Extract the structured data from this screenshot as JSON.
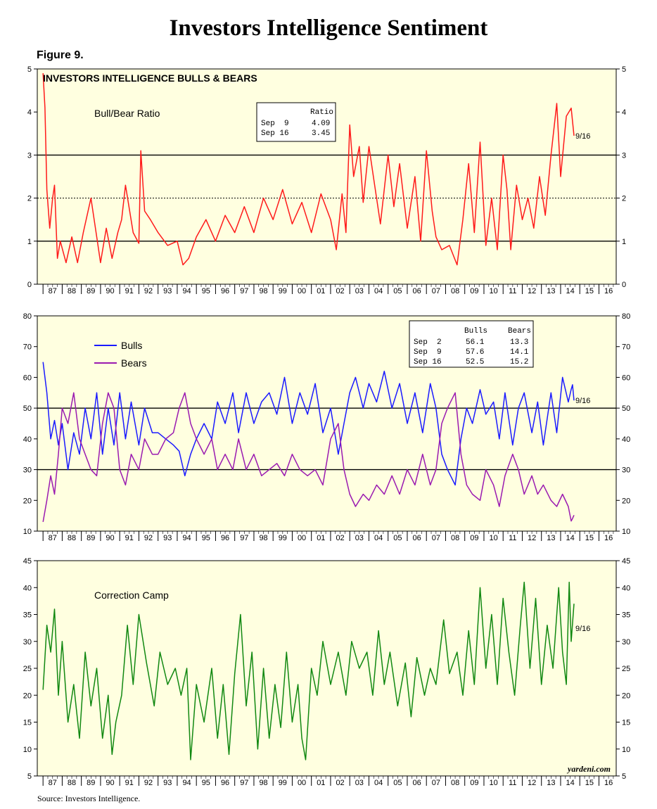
{
  "title": "Investors Intelligence Sentiment",
  "figure_label": "Figure 9.",
  "source": "Source: Investors Intelligence.",
  "watermark": "yardeni.com",
  "colors": {
    "ratio": "#ff1a1a",
    "bulls": "#1a1aff",
    "bears": "#9a1ab0",
    "correction": "#118811",
    "panel_bg": "#ffffe0"
  },
  "chart_data": [
    {
      "type": "line",
      "title": "INVESTORS INTELLIGENCE BULLS & BEARS",
      "label": "Bull/Bear Ratio",
      "ylim": [
        0,
        5
      ],
      "yticks": [
        0,
        1,
        2,
        3,
        4,
        5
      ],
      "xlim": [
        1986.7,
        2016.9
      ],
      "xticks": [
        "87",
        "88",
        "89",
        "90",
        "91",
        "92",
        "93",
        "94",
        "95",
        "96",
        "97",
        "98",
        "99",
        "00",
        "01",
        "02",
        "03",
        "04",
        "05",
        "06",
        "07",
        "08",
        "09",
        "10",
        "11",
        "12",
        "13",
        "14",
        "15",
        "16"
      ],
      "reference_lines": [
        {
          "y": 1,
          "style": "solid"
        },
        {
          "y": 3,
          "style": "solid"
        },
        {
          "y": 2,
          "style": "dotted"
        }
      ],
      "end_label": "9/16",
      "table": {
        "header": [
          "",
          "Ratio"
        ],
        "rows": [
          [
            "Sep  9",
            "4.09"
          ],
          [
            "Sep 16",
            "3.45"
          ]
        ]
      },
      "series": [
        {
          "name": "Bull/Bear Ratio",
          "color": "#ff1a1a",
          "x": [
            1987.0,
            1987.1,
            1987.2,
            1987.35,
            1987.5,
            1987.6,
            1987.75,
            1987.9,
            1988.2,
            1988.5,
            1988.8,
            1989.1,
            1989.5,
            1989.8,
            1990.0,
            1990.3,
            1990.6,
            1990.9,
            1991.1,
            1991.3,
            1991.7,
            1992.0,
            1992.1,
            1992.3,
            1992.6,
            1993.0,
            1993.5,
            1994.0,
            1994.3,
            1994.6,
            1995.0,
            1995.5,
            1996.0,
            1996.5,
            1997.0,
            1997.5,
            1998.0,
            1998.5,
            1999.0,
            1999.5,
            2000.0,
            2000.5,
            2001.0,
            2001.5,
            2002.0,
            2002.3,
            2002.6,
            2002.8,
            2003.0,
            2003.2,
            2003.5,
            2003.7,
            2004.0,
            2004.3,
            2004.6,
            2005.0,
            2005.3,
            2005.6,
            2006.0,
            2006.4,
            2006.7,
            2007.0,
            2007.3,
            2007.5,
            2007.8,
            2008.2,
            2008.6,
            2008.9,
            2009.2,
            2009.5,
            2009.8,
            2010.1,
            2010.4,
            2010.7,
            2011.0,
            2011.2,
            2011.4,
            2011.7,
            2012.0,
            2012.3,
            2012.6,
            2012.9,
            2013.2,
            2013.5,
            2013.8,
            2014.0,
            2014.3,
            2014.55,
            2014.7
          ],
          "values": [
            4.9,
            4.1,
            2.2,
            1.3,
            2.0,
            2.3,
            0.6,
            1.0,
            0.5,
            1.1,
            0.5,
            1.2,
            2.0,
            1.1,
            0.5,
            1.3,
            0.6,
            1.2,
            1.5,
            2.3,
            1.2,
            0.95,
            3.1,
            1.7,
            1.5,
            1.2,
            0.9,
            1.0,
            0.45,
            0.6,
            1.1,
            1.5,
            1.0,
            1.6,
            1.2,
            1.8,
            1.2,
            2.0,
            1.5,
            2.2,
            1.4,
            1.9,
            1.2,
            2.1,
            1.5,
            0.8,
            2.1,
            1.2,
            3.7,
            2.5,
            3.2,
            1.9,
            3.2,
            2.3,
            1.4,
            3.0,
            1.8,
            2.8,
            1.3,
            2.5,
            1.0,
            3.1,
            1.7,
            1.1,
            0.8,
            0.9,
            0.45,
            1.5,
            2.8,
            1.2,
            3.3,
            0.9,
            2.0,
            0.8,
            3.0,
            2.2,
            0.8,
            2.3,
            1.5,
            2.0,
            1.3,
            2.5,
            1.6,
            3.0,
            4.2,
            2.5,
            3.9,
            4.09,
            3.45
          ]
        }
      ]
    },
    {
      "type": "line",
      "ylim": [
        10,
        80
      ],
      "yticks": [
        10,
        20,
        30,
        40,
        50,
        60,
        70,
        80
      ],
      "xlim": [
        1986.7,
        2016.9
      ],
      "reference_lines": [
        {
          "y": 30,
          "style": "solid"
        },
        {
          "y": 50,
          "style": "solid"
        }
      ],
      "end_label": "9/16",
      "table": {
        "header": [
          "",
          "Bulls",
          "Bears"
        ],
        "rows": [
          [
            "Sep  2",
            "56.1",
            "13.3"
          ],
          [
            "Sep  9",
            "57.6",
            "14.1"
          ],
          [
            "Sep 16",
            "52.5",
            "15.2"
          ]
        ]
      },
      "series": [
        {
          "name": "Bulls",
          "color": "#1a1aff",
          "x": [
            1987.0,
            1987.2,
            1987.4,
            1987.6,
            1987.8,
            1988.0,
            1988.3,
            1988.6,
            1988.9,
            1989.2,
            1989.5,
            1989.8,
            1990.1,
            1990.4,
            1990.7,
            1991.0,
            1991.3,
            1991.6,
            1992.0,
            1992.3,
            1992.7,
            1993.0,
            1993.4,
            1993.8,
            1994.1,
            1994.4,
            1994.7,
            1995.0,
            1995.4,
            1995.8,
            1996.1,
            1996.5,
            1996.9,
            1997.2,
            1997.6,
            1998.0,
            1998.4,
            1998.8,
            1999.2,
            1999.6,
            2000.0,
            2000.4,
            2000.8,
            2001.2,
            2001.6,
            2002.0,
            2002.4,
            2002.7,
            2003.0,
            2003.3,
            2003.7,
            2004.0,
            2004.4,
            2004.8,
            2005.2,
            2005.6,
            2006.0,
            2006.4,
            2006.8,
            2007.2,
            2007.5,
            2007.8,
            2008.1,
            2008.5,
            2008.8,
            2009.1,
            2009.4,
            2009.8,
            2010.1,
            2010.5,
            2010.8,
            2011.1,
            2011.5,
            2011.8,
            2012.1,
            2012.5,
            2012.8,
            2013.1,
            2013.5,
            2013.8,
            2014.1,
            2014.4,
            2014.55,
            2014.62,
            2014.7
          ],
          "values": [
            65,
            55,
            40,
            46,
            38,
            45,
            30,
            42,
            35,
            50,
            40,
            55,
            35,
            50,
            38,
            55,
            40,
            52,
            38,
            50,
            42,
            42,
            40,
            38,
            36,
            28,
            35,
            40,
            45,
            40,
            52,
            45,
            55,
            42,
            55,
            45,
            52,
            55,
            48,
            60,
            45,
            55,
            48,
            58,
            42,
            50,
            35,
            45,
            55,
            60,
            50,
            58,
            52,
            62,
            50,
            58,
            45,
            55,
            42,
            58,
            50,
            35,
            30,
            25,
            40,
            50,
            45,
            56,
            48,
            52,
            40,
            55,
            38,
            50,
            55,
            42,
            52,
            38,
            55,
            42,
            60,
            52,
            56.1,
            57.6,
            52.5
          ]
        },
        {
          "name": "Bears",
          "color": "#9a1ab0",
          "x": [
            1987.0,
            1987.2,
            1987.4,
            1987.6,
            1987.8,
            1988.0,
            1988.3,
            1988.6,
            1988.9,
            1989.2,
            1989.5,
            1989.8,
            1990.1,
            1990.4,
            1990.7,
            1991.0,
            1991.3,
            1991.6,
            1992.0,
            1992.3,
            1992.7,
            1993.0,
            1993.4,
            1993.8,
            1994.1,
            1994.4,
            1994.7,
            1995.0,
            1995.4,
            1995.8,
            1996.1,
            1996.5,
            1996.9,
            1997.2,
            1997.6,
            1998.0,
            1998.4,
            1998.8,
            1999.2,
            1999.6,
            2000.0,
            2000.4,
            2000.8,
            2001.2,
            2001.6,
            2002.0,
            2002.4,
            2002.7,
            2003.0,
            2003.3,
            2003.7,
            2004.0,
            2004.4,
            2004.8,
            2005.2,
            2005.6,
            2006.0,
            2006.4,
            2006.8,
            2007.2,
            2007.5,
            2007.8,
            2008.1,
            2008.5,
            2008.8,
            2009.1,
            2009.4,
            2009.8,
            2010.1,
            2010.5,
            2010.8,
            2011.1,
            2011.5,
            2011.8,
            2012.1,
            2012.5,
            2012.8,
            2013.1,
            2013.5,
            2013.8,
            2014.1,
            2014.4,
            2014.55,
            2014.62,
            2014.7
          ],
          "values": [
            13,
            20,
            28,
            22,
            35,
            50,
            45,
            55,
            40,
            35,
            30,
            28,
            45,
            55,
            50,
            30,
            25,
            35,
            30,
            40,
            35,
            35,
            40,
            42,
            50,
            55,
            45,
            40,
            35,
            40,
            30,
            35,
            30,
            40,
            30,
            35,
            28,
            30,
            32,
            28,
            35,
            30,
            28,
            30,
            25,
            40,
            45,
            30,
            22,
            18,
            22,
            20,
            25,
            22,
            28,
            22,
            30,
            25,
            35,
            25,
            30,
            45,
            50,
            55,
            35,
            25,
            22,
            20,
            30,
            25,
            18,
            28,
            35,
            30,
            22,
            28,
            22,
            25,
            20,
            18,
            22,
            18,
            13.3,
            14.1,
            15.2
          ]
        }
      ]
    },
    {
      "type": "line",
      "label": "Correction Camp",
      "ylim": [
        5,
        45
      ],
      "yticks": [
        5,
        10,
        15,
        20,
        25,
        30,
        35,
        40,
        45
      ],
      "xlim": [
        1986.7,
        2016.9
      ],
      "end_label": "9/16",
      "series": [
        {
          "name": "Correction Camp",
          "color": "#118811",
          "x": [
            1987.0,
            1987.2,
            1987.4,
            1987.6,
            1987.8,
            1988.0,
            1988.3,
            1988.6,
            1988.9,
            1989.2,
            1989.5,
            1989.8,
            1990.1,
            1990.4,
            1990.6,
            1990.8,
            1991.1,
            1991.4,
            1991.7,
            1992.0,
            1992.4,
            1992.8,
            1993.1,
            1993.5,
            1993.9,
            1994.2,
            1994.5,
            1994.7,
            1995.0,
            1995.4,
            1995.8,
            1996.1,
            1996.4,
            1996.7,
            1997.0,
            1997.3,
            1997.6,
            1997.9,
            1998.2,
            1998.5,
            1998.8,
            1999.1,
            1999.4,
            1999.7,
            2000.0,
            2000.3,
            2000.5,
            2000.7,
            2001.0,
            2001.3,
            2001.6,
            2002.0,
            2002.4,
            2002.8,
            2003.1,
            2003.5,
            2003.9,
            2004.2,
            2004.5,
            2004.8,
            2005.1,
            2005.5,
            2005.9,
            2006.2,
            2006.5,
            2006.9,
            2007.2,
            2007.5,
            2007.9,
            2008.2,
            2008.6,
            2008.9,
            2009.2,
            2009.5,
            2009.8,
            2010.1,
            2010.4,
            2010.7,
            2011.0,
            2011.3,
            2011.6,
            2011.9,
            2012.1,
            2012.4,
            2012.7,
            2013.0,
            2013.3,
            2013.6,
            2013.9,
            2014.1,
            2014.3,
            2014.45,
            2014.55,
            2014.7
          ],
          "values": [
            21,
            33,
            28,
            36,
            20,
            30,
            15,
            22,
            12,
            28,
            18,
            25,
            12,
            20,
            9,
            15,
            20,
            33,
            22,
            35,
            26,
            18,
            28,
            22,
            25,
            20,
            25,
            8,
            22,
            15,
            25,
            12,
            22,
            9,
            24,
            35,
            18,
            28,
            10,
            25,
            12,
            22,
            14,
            28,
            15,
            22,
            12,
            8,
            25,
            20,
            30,
            22,
            28,
            20,
            30,
            25,
            28,
            20,
            32,
            22,
            28,
            18,
            26,
            16,
            27,
            20,
            25,
            22,
            34,
            24,
            28,
            20,
            32,
            22,
            40,
            25,
            35,
            22,
            38,
            28,
            20,
            33,
            41,
            25,
            38,
            22,
            33,
            25,
            40,
            28,
            22,
            41,
            30,
            37
          ]
        }
      ]
    }
  ]
}
